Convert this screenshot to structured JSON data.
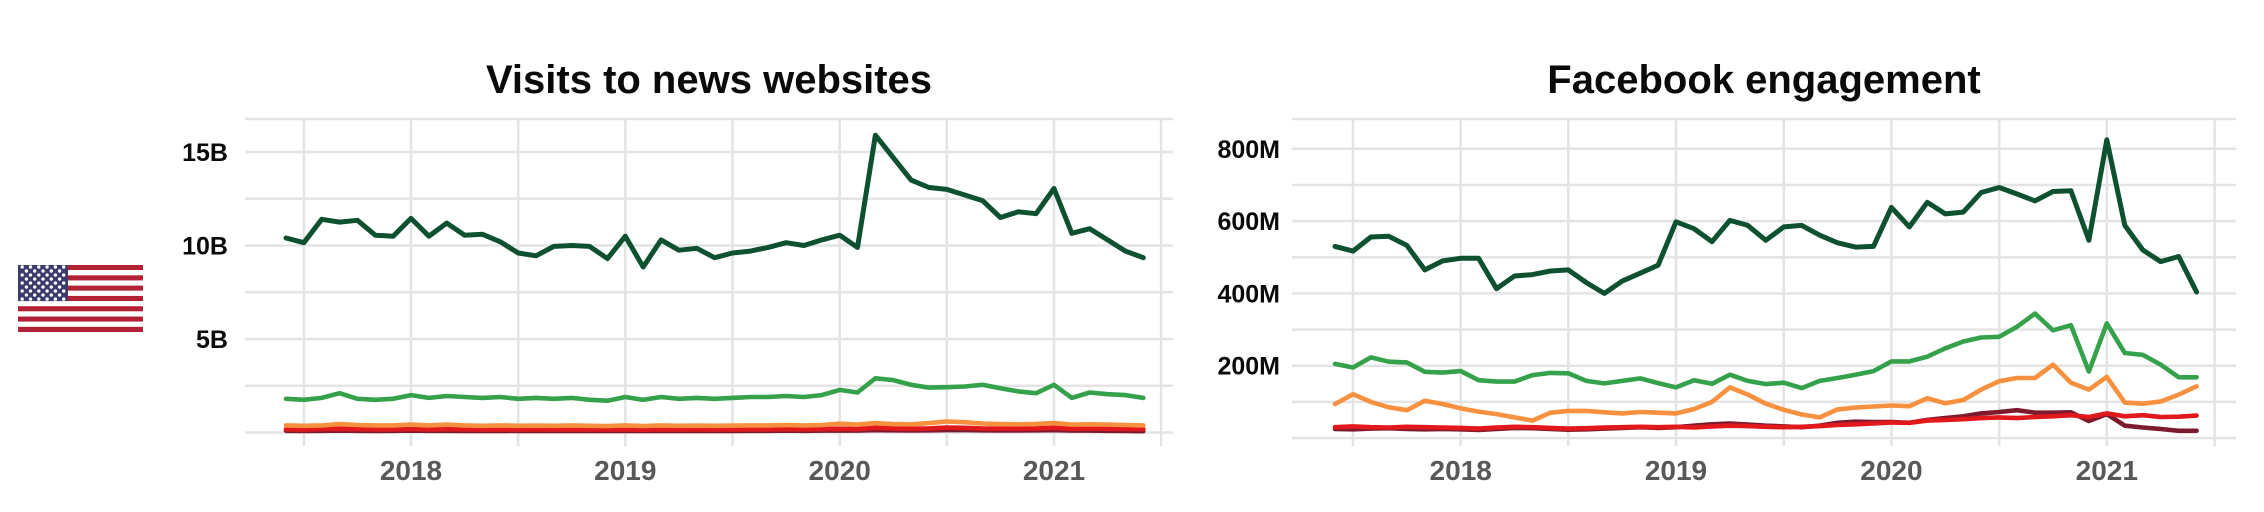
{
  "figure": {
    "background": "#ffffff",
    "legend": "none",
    "x_period": "monthly, Jun 2017 - Jun 2021"
  },
  "flag": {
    "icon": "us-flag-icon",
    "stripe_red": "#B22234",
    "canton_blue": "#3C3B6E",
    "star_white": "#FFFFFF",
    "n_stripes": 13
  },
  "chart_data": [
    {
      "type": "line",
      "title": "Visits to news websites",
      "unit": "billions of visits",
      "grid": true,
      "legend_position": "none",
      "ylim": [
        0,
        16.8
      ],
      "y_ticks": [
        {
          "value": 5,
          "label": "5B"
        },
        {
          "value": 10,
          "label": "10B"
        },
        {
          "value": 15,
          "label": "15B"
        }
      ],
      "y_minor_values": [
        0,
        2.5,
        7.5,
        12.5
      ],
      "x_ticks": [
        {
          "month_index": 7,
          "label": "2018"
        },
        {
          "month_index": 19,
          "label": "2019"
        },
        {
          "month_index": 31,
          "label": "2020"
        },
        {
          "month_index": 43,
          "label": "2021"
        }
      ],
      "x_start": "2017-06",
      "x_end": "2021-06",
      "series": [
        {
          "name": "line-maroon",
          "color": "#7d1b2e",
          "values": [
            0.09,
            0.08,
            0.09,
            0.1,
            0.09,
            0.08,
            0.09,
            0.1,
            0.09,
            0.09,
            0.08,
            0.08,
            0.09,
            0.08,
            0.08,
            0.08,
            0.09,
            0.08,
            0.08,
            0.09,
            0.08,
            0.09,
            0.08,
            0.08,
            0.08,
            0.08,
            0.09,
            0.09,
            0.1,
            0.09,
            0.1,
            0.11,
            0.1,
            0.13,
            0.12,
            0.11,
            0.12,
            0.13,
            0.13,
            0.12,
            0.11,
            0.11,
            0.12,
            0.13,
            0.1,
            0.1,
            0.09,
            0.08,
            0.07
          ]
        },
        {
          "name": "line-red",
          "color": "#e2191c",
          "values": [
            0.17,
            0.16,
            0.18,
            0.2,
            0.18,
            0.17,
            0.17,
            0.19,
            0.17,
            0.18,
            0.17,
            0.16,
            0.17,
            0.16,
            0.16,
            0.16,
            0.17,
            0.16,
            0.16,
            0.17,
            0.15,
            0.17,
            0.16,
            0.16,
            0.16,
            0.16,
            0.17,
            0.17,
            0.18,
            0.17,
            0.18,
            0.2,
            0.18,
            0.25,
            0.22,
            0.2,
            0.22,
            0.26,
            0.25,
            0.22,
            0.21,
            0.21,
            0.22,
            0.25,
            0.2,
            0.22,
            0.2,
            0.19,
            0.18
          ]
        },
        {
          "name": "line-orange",
          "color": "#f8913f",
          "values": [
            0.38,
            0.36,
            0.38,
            0.45,
            0.4,
            0.38,
            0.38,
            0.42,
            0.38,
            0.42,
            0.38,
            0.36,
            0.38,
            0.36,
            0.37,
            0.36,
            0.38,
            0.36,
            0.35,
            0.38,
            0.35,
            0.38,
            0.36,
            0.37,
            0.36,
            0.37,
            0.38,
            0.38,
            0.4,
            0.38,
            0.4,
            0.47,
            0.42,
            0.5,
            0.45,
            0.44,
            0.5,
            0.59,
            0.55,
            0.48,
            0.45,
            0.44,
            0.46,
            0.5,
            0.42,
            0.44,
            0.42,
            0.4,
            0.38
          ]
        },
        {
          "name": "line-green",
          "color": "#35a14b",
          "values": [
            1.8,
            1.75,
            1.85,
            2.1,
            1.8,
            1.75,
            1.8,
            2.0,
            1.85,
            1.95,
            1.9,
            1.85,
            1.9,
            1.8,
            1.85,
            1.8,
            1.85,
            1.75,
            1.7,
            1.9,
            1.75,
            1.9,
            1.8,
            1.85,
            1.8,
            1.85,
            1.9,
            1.9,
            1.95,
            1.9,
            2.0,
            2.28,
            2.14,
            2.9,
            2.8,
            2.55,
            2.4,
            2.42,
            2.46,
            2.55,
            2.37,
            2.2,
            2.1,
            2.55,
            1.85,
            2.14,
            2.05,
            2.0,
            1.85
          ]
        },
        {
          "name": "line-dark-green",
          "color": "#0e5130",
          "values": [
            10.4,
            10.15,
            11.4,
            11.25,
            11.35,
            10.55,
            10.5,
            11.45,
            10.5,
            11.2,
            10.55,
            10.6,
            10.2,
            9.6,
            9.45,
            9.95,
            10.0,
            9.95,
            9.3,
            10.5,
            8.85,
            10.3,
            9.75,
            9.85,
            9.35,
            9.6,
            9.7,
            9.9,
            10.15,
            10.0,
            10.3,
            10.55,
            9.9,
            15.9,
            14.7,
            13.5,
            13.1,
            13.0,
            12.7,
            12.4,
            11.5,
            11.8,
            11.7,
            13.05,
            10.65,
            10.9,
            10.3,
            9.7,
            9.35
          ]
        }
      ]
    },
    {
      "type": "line",
      "title": "Facebook engagement",
      "unit": "millions of engagements",
      "grid": true,
      "legend_position": "none",
      "ylim": [
        0,
        880
      ],
      "y_ticks": [
        {
          "value": 200,
          "label": "200M"
        },
        {
          "value": 400,
          "label": "400M"
        },
        {
          "value": 600,
          "label": "600M"
        },
        {
          "value": 800,
          "label": "800M"
        }
      ],
      "y_minor_values": [
        0,
        100,
        300,
        500,
        700
      ],
      "x_ticks": [
        {
          "month_index": 7,
          "label": "2018"
        },
        {
          "month_index": 19,
          "label": "2019"
        },
        {
          "month_index": 31,
          "label": "2020"
        },
        {
          "month_index": 43,
          "label": "2021"
        }
      ],
      "x_start": "2017-06",
      "x_end": "2021-06",
      "series": [
        {
          "name": "line-maroon",
          "color": "#7d1b2e",
          "values": [
            25,
            24,
            26,
            27,
            25,
            24,
            25,
            24,
            22,
            25,
            28,
            27,
            25,
            23,
            24,
            26,
            28,
            30,
            28,
            30,
            34,
            38,
            40,
            37,
            34,
            32,
            30,
            34,
            42,
            45,
            44,
            44,
            42,
            50,
            55,
            60,
            68,
            72,
            77,
            70,
            70,
            71,
            47,
            66,
            34,
            29,
            25,
            20,
            20
          ]
        },
        {
          "name": "line-red",
          "color": "#e2191c",
          "values": [
            30,
            32,
            30,
            29,
            31,
            30,
            29,
            28,
            26,
            29,
            31,
            30,
            28,
            26,
            27,
            29,
            30,
            31,
            30,
            31,
            29,
            32,
            34,
            33,
            31,
            30,
            31,
            33,
            36,
            38,
            40,
            43,
            42,
            48,
            50,
            52,
            55,
            57,
            55,
            58,
            60,
            63,
            58,
            68,
            60,
            63,
            58,
            59,
            62
          ]
        },
        {
          "name": "line-orange",
          "color": "#f8913f",
          "values": [
            94,
            121,
            100,
            85,
            77,
            103,
            94,
            82,
            73,
            66,
            57,
            48,
            70,
            75,
            75,
            71,
            68,
            72,
            70,
            68,
            80,
            100,
            140,
            120,
            95,
            78,
            65,
            57,
            79,
            84,
            87,
            90,
            88,
            110,
            96,
            105,
            134,
            157,
            166,
            166,
            203,
            153,
            134,
            169,
            98,
            95,
            101,
            120,
            143
          ]
        },
        {
          "name": "line-green",
          "color": "#35a14b",
          "values": [
            205,
            195,
            223,
            211,
            209,
            183,
            181,
            185,
            160,
            156,
            156,
            174,
            180,
            179,
            158,
            151,
            158,
            165,
            152,
            140,
            160,
            150,
            175,
            158,
            149,
            153,
            138,
            158,
            166,
            175,
            185,
            212,
            212,
            225,
            248,
            267,
            278,
            280,
            308,
            344,
            298,
            312,
            184,
            317,
            235,
            230,
            203,
            168,
            168
          ]
        },
        {
          "name": "line-dark-green",
          "color": "#0e5130",
          "values": [
            530,
            517,
            556,
            558,
            533,
            465,
            490,
            497,
            497,
            413,
            448,
            452,
            462,
            465,
            430,
            400,
            434,
            456,
            478,
            598,
            579,
            543,
            602,
            588,
            547,
            584,
            588,
            561,
            540,
            528,
            530,
            638,
            584,
            652,
            620,
            625,
            679,
            693,
            675,
            656,
            682,
            684,
            547,
            825,
            588,
            520,
            488,
            502,
            404
          ]
        }
      ]
    }
  ]
}
